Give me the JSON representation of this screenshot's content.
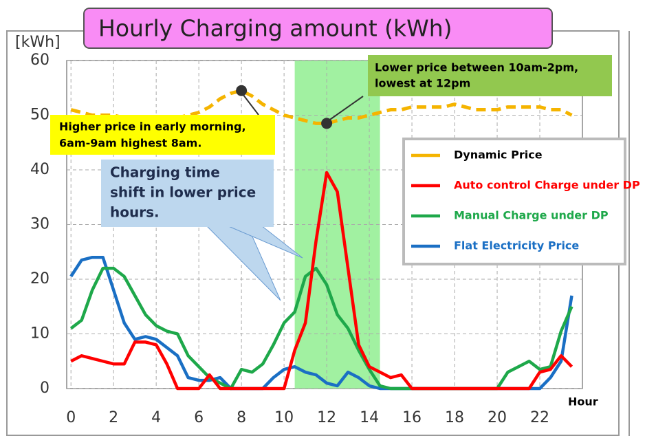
{
  "chart_data": {
    "type": "line",
    "title": "Hourly Charging amount (kWh)",
    "y_label": "[kWh]",
    "x_label": "Hour",
    "x": [
      0,
      0.5,
      1,
      1.5,
      2,
      2.5,
      3,
      3.5,
      4,
      4.5,
      5,
      5.5,
      6,
      6.5,
      7,
      7.5,
      8,
      8.5,
      9,
      9.5,
      10,
      10.5,
      11,
      11.5,
      12,
      12.5,
      13,
      13.5,
      14,
      14.5,
      15,
      15.5,
      16,
      16.5,
      17,
      17.5,
      18,
      18.5,
      19,
      19.5,
      20,
      20.5,
      21,
      21.5,
      22,
      22.5,
      23,
      23.5
    ],
    "xlim": [
      -0.2,
      24
    ],
    "xticks": [
      0,
      2,
      4,
      6,
      8,
      10,
      12,
      14,
      16,
      18,
      20,
      22
    ],
    "ylim": [
      0,
      60
    ],
    "yticks": [
      0,
      10,
      20,
      30,
      40,
      50,
      60
    ],
    "grid": true,
    "highlight_x": [
      10.5,
      14.5
    ],
    "series": [
      {
        "name": "Dynamic Price",
        "color": "#f5b400",
        "label_color": "#000000",
        "dashed": true,
        "markers": [
          16,
          24
        ],
        "values": [
          51,
          50.5,
          50,
          50,
          50,
          49.5,
          49.5,
          49.5,
          49.5,
          49.5,
          49.5,
          50,
          50.5,
          51.5,
          53,
          54,
          54.5,
          53.5,
          52,
          51,
          50,
          49.5,
          49,
          48.5,
          48.5,
          49,
          49.5,
          49.5,
          50,
          50.5,
          51,
          51,
          51.5,
          51.5,
          51.5,
          51.5,
          52,
          51.5,
          51,
          51,
          51,
          51.5,
          51.5,
          51.5,
          51.5,
          51,
          51,
          50
        ]
      },
      {
        "name": "Auto control Charge under DP",
        "color": "#ff0000",
        "label_color": "#ff0000",
        "values": [
          5,
          6,
          5.5,
          5,
          4.5,
          4.5,
          8.5,
          8.5,
          8,
          4.5,
          0,
          0,
          0,
          2.5,
          0,
          0,
          0,
          0,
          0,
          0,
          0,
          7,
          12,
          27,
          39.5,
          36,
          22,
          8,
          4,
          3,
          2,
          2.5,
          0,
          0,
          0,
          0,
          0,
          0,
          0,
          0,
          0,
          0,
          0,
          0,
          3,
          3.5,
          6,
          4
        ]
      },
      {
        "name": "Manual Charge under DP",
        "color": "#1ea84a",
        "label_color": "#1ea84a",
        "values": [
          11,
          12.5,
          18,
          22,
          22,
          20.5,
          17,
          13.5,
          11.5,
          10.5,
          10,
          6,
          4,
          2,
          1,
          0,
          3.5,
          3,
          4.5,
          8,
          12,
          14,
          20.5,
          22,
          19,
          13.5,
          11,
          7,
          3.5,
          0.5,
          0,
          0,
          0,
          0,
          0,
          0,
          0,
          0,
          0,
          0,
          0,
          3,
          4,
          5,
          3.5,
          4,
          10.5,
          15
        ]
      },
      {
        "name": "Flat Electricity Price",
        "color": "#1a6fc4",
        "label_color": "#1a6fc4",
        "values": [
          20.5,
          23.5,
          24,
          24,
          18,
          12,
          9,
          9.5,
          9,
          7.5,
          6,
          2,
          1.5,
          1.5,
          2,
          0,
          0,
          0,
          0,
          2,
          3.5,
          4,
          3,
          2.5,
          1,
          0.5,
          3,
          2,
          0.5,
          0,
          0,
          0,
          0,
          0,
          0,
          0,
          0,
          0,
          0,
          0,
          0,
          0,
          0,
          0,
          0,
          2,
          5,
          17
        ]
      }
    ],
    "annotations": [
      {
        "lines": [
          "Lower price between 10am-2pm,",
          "lowest at 12pm"
        ]
      },
      {
        "lines": [
          "Higher price in early morning,",
          "6am-9am highest 8am."
        ]
      },
      {
        "lines": [
          "Charging time",
          "shift in lower price",
          "hours."
        ]
      }
    ]
  }
}
